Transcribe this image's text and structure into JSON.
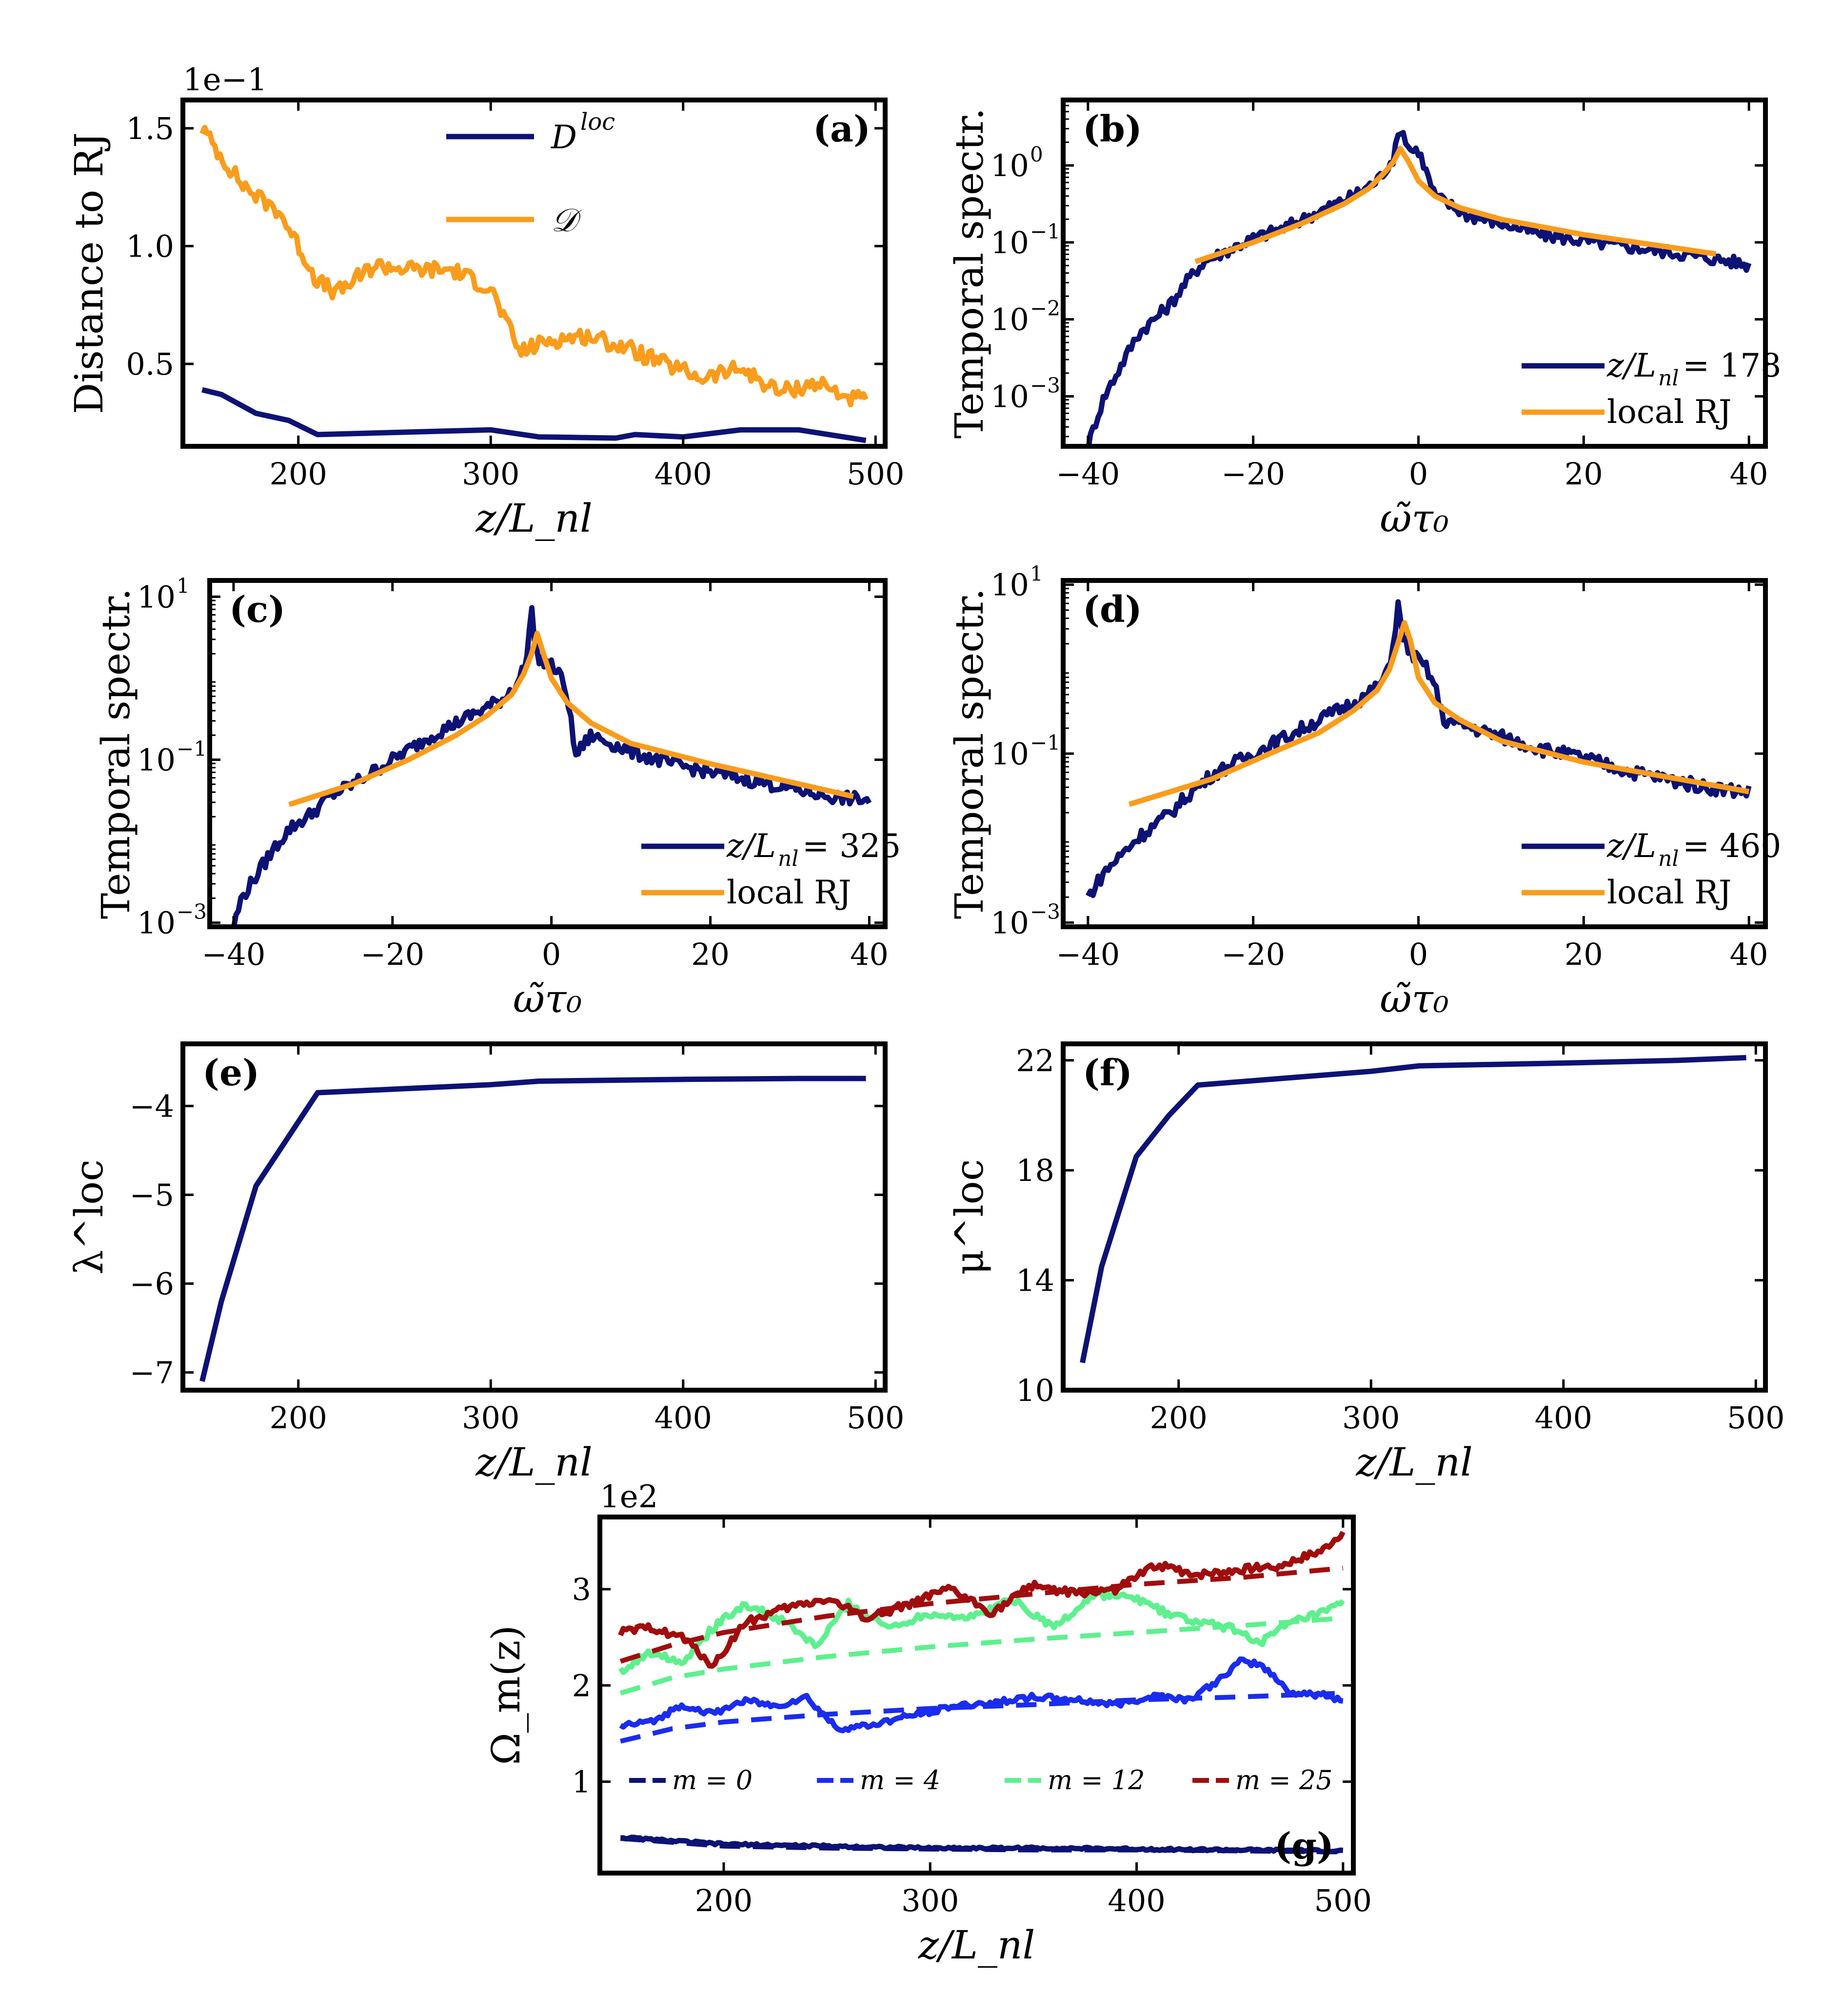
{
  "figure": {
    "colors": {
      "navy": "#0d1275",
      "orange": "#fa9c1c",
      "blue": "#1a2cf0",
      "green": "#5ef08e",
      "red": "#a10d0d"
    }
  },
  "chart_data": [
    {
      "id": "a",
      "type": "line",
      "panel_label": "(a)",
      "xlabel": "z/L_nl",
      "ylabel": "Distance to RJ",
      "sci_note": "1e−1",
      "xlim": [
        140,
        505
      ],
      "ylim": [
        0.15,
        1.62
      ],
      "yscale": "linear",
      "xticks": [
        200,
        300,
        400,
        500
      ],
      "xtick_labels": [
        "200",
        "300",
        "400",
        "500"
      ],
      "yticks": [
        0.5,
        1.0,
        1.5
      ],
      "ytick_labels": [
        "0.5",
        "1.0",
        "1.5"
      ],
      "legend_position": "upper-center",
      "series": [
        {
          "name": "D^loc",
          "color": "navy",
          "label_main": "D",
          "label_sup": "loc",
          "x": [
            150,
            160,
            178,
            195,
            210,
            300,
            325,
            365,
            375,
            400,
            430,
            460,
            495
          ],
          "y": [
            0.39,
            0.37,
            0.29,
            0.26,
            0.2,
            0.22,
            0.19,
            0.185,
            0.2,
            0.19,
            0.22,
            0.22,
            0.175
          ]
        },
        {
          "name": "calD",
          "color": "orange",
          "label_main": "𝒟",
          "x": [
            150,
            160,
            170,
            180,
            190,
            200,
            210,
            220,
            240,
            260,
            280,
            300,
            315,
            330,
            350,
            370,
            390,
            410,
            430,
            450,
            470,
            485,
            495
          ],
          "y": [
            1.5,
            1.38,
            1.27,
            1.2,
            1.15,
            1.0,
            0.85,
            0.8,
            0.92,
            0.9,
            0.9,
            0.82,
            0.55,
            0.6,
            0.62,
            0.57,
            0.5,
            0.44,
            0.48,
            0.38,
            0.42,
            0.36,
            0.34
          ],
          "noise": 0.035
        }
      ]
    },
    {
      "id": "b",
      "type": "line",
      "panel_label": "(b)",
      "xlabel": "ω̃τ₀",
      "ylabel": "Temporal spectr.",
      "xlim": [
        -43,
        42
      ],
      "ylim_log10": [
        -3.65,
        0.85
      ],
      "yscale": "log",
      "xticks": [
        -40,
        -20,
        0,
        20,
        40
      ],
      "xtick_labels": [
        "−40",
        "−20",
        "0",
        "20",
        "40"
      ],
      "yticks_log10": [
        0,
        -1,
        -2,
        -3
      ],
      "ytick_labels": [
        "10",
        "10",
        "10",
        "10"
      ],
      "ytick_exps": [
        "0",
        "−1",
        "−2",
        "−3"
      ],
      "legend_position": "lower-right",
      "series": [
        {
          "name": "sim",
          "color": "navy",
          "label_main": "z/L",
          "label_sub": "nl",
          "label_tail": " = 178",
          "x": [
            -40,
            -39,
            -38,
            -36,
            -34,
            -32,
            -30,
            -28,
            -26,
            -24,
            -20,
            -16,
            -12,
            -8,
            -5,
            -3,
            -2.2,
            -1,
            0,
            2,
            6,
            10,
            15,
            20,
            25,
            30,
            35,
            38,
            40
          ],
          "y": [
            -3.65,
            -3.3,
            -3.0,
            -2.6,
            -2.2,
            -2.0,
            -1.8,
            -1.5,
            -1.25,
            -1.15,
            -0.95,
            -0.8,
            -0.6,
            -0.4,
            -0.2,
            0.1,
            0.5,
            0.2,
            0.2,
            -0.4,
            -0.65,
            -0.75,
            -0.9,
            -0.98,
            -1.05,
            -1.12,
            -1.2,
            -1.25,
            -1.3
          ],
          "noise": 0.08
        },
        {
          "name": "local RJ",
          "color": "orange",
          "label_main": "local RJ",
          "x": [
            -27,
            -20,
            -14,
            -9,
            -6,
            -4,
            -3,
            -2.2,
            -1.2,
            0,
            2,
            5,
            10,
            20,
            36
          ],
          "y": [
            -1.25,
            -1.0,
            -0.75,
            -0.5,
            -0.3,
            -0.08,
            0.05,
            0.22,
            0.05,
            -0.2,
            -0.4,
            -0.55,
            -0.7,
            -0.9,
            -1.15
          ]
        }
      ]
    },
    {
      "id": "c",
      "type": "line",
      "panel_label": "(c)",
      "xlabel": "ω̃τ₀",
      "ylabel": "Temporal spectr.",
      "xlim": [
        -43,
        42
      ],
      "ylim_log10": [
        -3.05,
        1.2
      ],
      "yscale": "log",
      "xticks": [
        -40,
        -20,
        0,
        20,
        40
      ],
      "xtick_labels": [
        "−40",
        "−20",
        "0",
        "20",
        "40"
      ],
      "yticks_log10": [
        1,
        -1,
        -3
      ],
      "ytick_labels": [
        "10",
        "10",
        "10"
      ],
      "ytick_exps": [
        "1",
        "−1",
        "−3"
      ],
      "legend_position": "lower-right",
      "series": [
        {
          "name": "sim",
          "color": "navy",
          "label_main": "z/L",
          "label_sub": "nl",
          "label_tail": " = 325",
          "x": [
            -40,
            -39,
            -37,
            -35,
            -33,
            -30,
            -28,
            -25,
            -20,
            -15,
            -10,
            -6,
            -4,
            -3,
            -2.6,
            -2,
            -1,
            0,
            1,
            2,
            3,
            5,
            10,
            15,
            20,
            25,
            30,
            35,
            40
          ],
          "y": [
            -3.05,
            -2.7,
            -2.4,
            -2.1,
            -1.85,
            -1.65,
            -1.45,
            -1.3,
            -1.0,
            -0.7,
            -0.45,
            -0.25,
            0.0,
            0.25,
            1.0,
            0.3,
            0.2,
            0.15,
            0.05,
            -0.2,
            -0.95,
            -0.7,
            -0.9,
            -1.05,
            -1.15,
            -1.25,
            -1.35,
            -1.45,
            -1.5
          ],
          "noise": 0.08
        },
        {
          "name": "local RJ",
          "color": "orange",
          "label_main": "local RJ",
          "x": [
            -33,
            -25,
            -18,
            -12,
            -8,
            -5,
            -3.5,
            -2.5,
            -1.8,
            -1,
            0,
            2,
            5,
            10,
            20,
            38
          ],
          "y": [
            -1.55,
            -1.3,
            -1.0,
            -0.7,
            -0.45,
            -0.2,
            0.05,
            0.3,
            0.55,
            0.3,
            0.0,
            -0.3,
            -0.55,
            -0.8,
            -1.05,
            -1.45
          ]
        }
      ]
    },
    {
      "id": "d",
      "type": "line",
      "panel_label": "(d)",
      "xlabel": "ω̃τ₀",
      "ylabel": "Temporal spectr.",
      "xlim": [
        -43,
        42
      ],
      "ylim_log10": [
        -3.05,
        1.05
      ],
      "yscale": "log",
      "xticks": [
        -40,
        -20,
        0,
        20,
        40
      ],
      "xtick_labels": [
        "−40",
        "−20",
        "0",
        "20",
        "40"
      ],
      "yticks_log10": [
        1,
        -1,
        -3
      ],
      "ytick_labels": [
        "10",
        "10",
        "10"
      ],
      "ytick_exps": [
        "1",
        "−1",
        "−3"
      ],
      "legend_position": "lower-right",
      "series": [
        {
          "name": "sim",
          "color": "navy",
          "label_main": "z/L",
          "label_sub": "nl",
          "label_tail": " = 460",
          "x": [
            -40,
            -38,
            -36,
            -34,
            -32,
            -30,
            -28,
            -25,
            -20,
            -15,
            -10,
            -6,
            -4,
            -3,
            -2.5,
            -2,
            -1,
            0,
            1,
            2,
            3,
            5,
            10,
            15,
            20,
            25,
            30,
            35,
            40
          ],
          "y": [
            -2.7,
            -2.4,
            -2.2,
            -2.0,
            -1.85,
            -1.7,
            -1.5,
            -1.25,
            -1.0,
            -0.75,
            -0.5,
            -0.3,
            -0.1,
            0.3,
            0.8,
            0.4,
            0.2,
            0.1,
            0.0,
            -0.2,
            -0.6,
            -0.65,
            -0.8,
            -0.95,
            -1.05,
            -1.2,
            -1.3,
            -1.4,
            -1.45
          ],
          "noise": 0.08
        },
        {
          "name": "local RJ",
          "color": "orange",
          "label_main": "local RJ",
          "x": [
            -35,
            -25,
            -18,
            -12,
            -8,
            -5,
            -3.5,
            -2.5,
            -1.7,
            -1,
            0,
            2,
            5,
            10,
            20,
            40
          ],
          "y": [
            -1.6,
            -1.3,
            -1.0,
            -0.75,
            -0.5,
            -0.25,
            0.0,
            0.3,
            0.55,
            0.35,
            -0.1,
            -0.4,
            -0.6,
            -0.85,
            -1.1,
            -1.45
          ]
        }
      ]
    },
    {
      "id": "e",
      "type": "line",
      "panel_label": "(e)",
      "xlabel": "z/L_nl",
      "ylabel": "λ^loc",
      "ylabel_main": "λ",
      "ylabel_sup": "loc",
      "xlim": [
        140,
        505
      ],
      "ylim": [
        -7.2,
        -3.3
      ],
      "yscale": "linear",
      "xticks": [
        200,
        300,
        400,
        500
      ],
      "xtick_labels": [
        "200",
        "300",
        "400",
        "500"
      ],
      "yticks": [
        -4,
        -5,
        -6,
        -7
      ],
      "ytick_labels": [
        "−4",
        "−5",
        "−6",
        "−7"
      ],
      "series": [
        {
          "name": "lambda_loc",
          "color": "navy",
          "x": [
            150,
            160,
            178,
            210,
            300,
            325,
            400,
            460,
            495
          ],
          "y": [
            -7.1,
            -6.2,
            -4.9,
            -3.85,
            -3.76,
            -3.72,
            -3.7,
            -3.69,
            -3.69
          ]
        }
      ]
    },
    {
      "id": "f",
      "type": "line",
      "panel_label": "(f)",
      "xlabel": "z/L_nl",
      "ylabel": "μ^loc",
      "ylabel_main": "μ",
      "ylabel_sup": "loc",
      "xlim": [
        140,
        505
      ],
      "ylim": [
        10,
        22.6
      ],
      "yscale": "linear",
      "xticks": [
        200,
        300,
        400,
        500
      ],
      "xtick_labels": [
        "200",
        "300",
        "400",
        "500"
      ],
      "yticks": [
        10,
        14,
        18,
        22
      ],
      "ytick_labels": [
        "10",
        "14",
        "18",
        "22"
      ],
      "series": [
        {
          "name": "mu_loc",
          "color": "navy",
          "x": [
            150,
            160,
            178,
            195,
            210,
            300,
            325,
            400,
            460,
            495
          ],
          "y": [
            11.0,
            14.5,
            18.5,
            20.0,
            21.1,
            21.6,
            21.8,
            21.9,
            22.0,
            22.1
          ]
        }
      ]
    },
    {
      "id": "g",
      "type": "line",
      "panel_label": "(g)",
      "xlabel": "z/L_nl",
      "ylabel": "Ω_m(z)",
      "sci_note": "1e2",
      "xlim": [
        140,
        505
      ],
      "ylim": [
        0.05,
        3.75
      ],
      "yscale": "linear",
      "xticks": [
        200,
        300,
        400,
        500
      ],
      "xtick_labels": [
        "200",
        "300",
        "400",
        "500"
      ],
      "yticks": [
        1,
        2,
        3
      ],
      "ytick_labels": [
        "1",
        "2",
        "3"
      ],
      "legend_position": "bottom",
      "series": [
        {
          "name": "m = 0",
          "color": "navy",
          "label": "m = 0",
          "x": [
            150,
            200,
            250,
            300,
            350,
            400,
            450,
            500
          ],
          "y": [
            0.42,
            0.35,
            0.33,
            0.31,
            0.31,
            0.3,
            0.29,
            0.28
          ],
          "noise": 0.012,
          "fit_x": [
            150,
            200,
            250,
            300,
            350,
            400,
            450,
            500
          ],
          "fit_y": [
            0.41,
            0.33,
            0.31,
            0.3,
            0.29,
            0.29,
            0.28,
            0.27
          ]
        },
        {
          "name": "m = 4",
          "color": "blue",
          "label": "m = 4",
          "x": [
            150,
            165,
            180,
            195,
            210,
            225,
            240,
            255,
            270,
            290,
            310,
            330,
            350,
            370,
            390,
            410,
            425,
            440,
            450,
            460,
            475,
            490,
            500
          ],
          "y": [
            1.58,
            1.62,
            1.8,
            1.7,
            1.85,
            1.78,
            1.88,
            1.55,
            1.58,
            1.68,
            1.78,
            1.82,
            1.88,
            1.85,
            1.8,
            1.9,
            1.85,
            2.05,
            2.25,
            2.22,
            1.92,
            1.9,
            1.85
          ],
          "noise": 0.03,
          "fit_x": [
            150,
            175,
            200,
            250,
            300,
            350,
            400,
            450,
            500
          ],
          "fit_y": [
            1.42,
            1.55,
            1.62,
            1.7,
            1.76,
            1.8,
            1.85,
            1.88,
            1.92
          ]
        },
        {
          "name": "m = 12",
          "color": "green",
          "label": "m = 12",
          "x": [
            150,
            165,
            180,
            195,
            210,
            230,
            245,
            260,
            280,
            300,
            320,
            340,
            360,
            380,
            400,
            415,
            430,
            445,
            460,
            475,
            490,
            500
          ],
          "y": [
            2.15,
            2.35,
            2.25,
            2.6,
            2.85,
            2.65,
            2.4,
            2.85,
            2.6,
            2.75,
            2.7,
            2.9,
            2.6,
            2.95,
            2.9,
            2.75,
            2.65,
            2.6,
            2.45,
            2.65,
            2.75,
            2.85
          ],
          "noise": 0.04,
          "fit_x": [
            150,
            175,
            200,
            250,
            300,
            350,
            400,
            450,
            500
          ],
          "fit_y": [
            1.92,
            2.08,
            2.17,
            2.3,
            2.4,
            2.48,
            2.55,
            2.62,
            2.7
          ]
        },
        {
          "name": "m = 25",
          "color": "red",
          "label": "m = 25",
          "x": [
            150,
            165,
            180,
            195,
            210,
            230,
            250,
            270,
            290,
            310,
            330,
            350,
            370,
            390,
            410,
            430,
            450,
            470,
            490,
            500
          ],
          "y": [
            2.55,
            2.6,
            2.5,
            2.2,
            2.65,
            2.8,
            2.9,
            2.7,
            2.85,
            3.0,
            2.75,
            3.05,
            2.95,
            3.0,
            3.25,
            3.15,
            3.2,
            3.25,
            3.4,
            3.6
          ],
          "noise": 0.04,
          "fit_x": [
            150,
            175,
            200,
            250,
            300,
            350,
            400,
            450,
            500
          ],
          "fit_y": [
            2.25,
            2.42,
            2.55,
            2.72,
            2.85,
            2.95,
            3.05,
            3.12,
            3.22
          ]
        }
      ]
    }
  ]
}
